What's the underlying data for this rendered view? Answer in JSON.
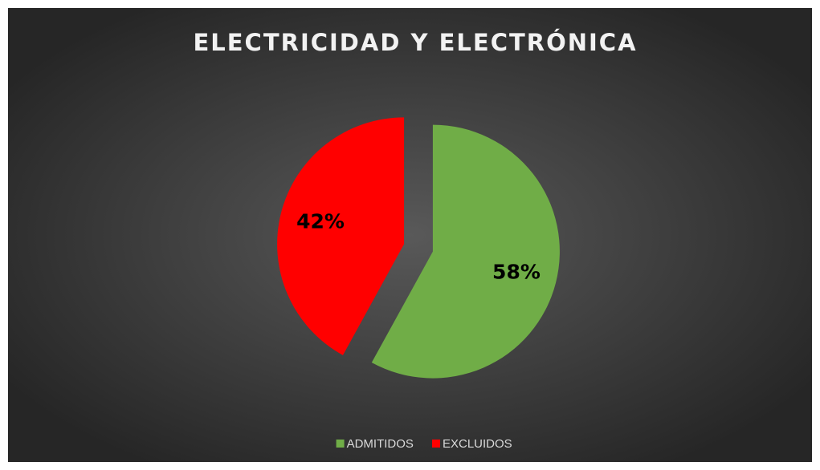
{
  "chart_data": {
    "type": "pie",
    "title": "ELECTRICIDAD Y ELECTRÓNICA",
    "categories": [
      "ADMITIDOS",
      "EXCLUIDOS"
    ],
    "values": [
      58,
      42
    ],
    "value_labels": [
      "58%",
      "42%"
    ],
    "colors": [
      "#70ad47",
      "#ff0000"
    ],
    "legend": "bottom"
  }
}
